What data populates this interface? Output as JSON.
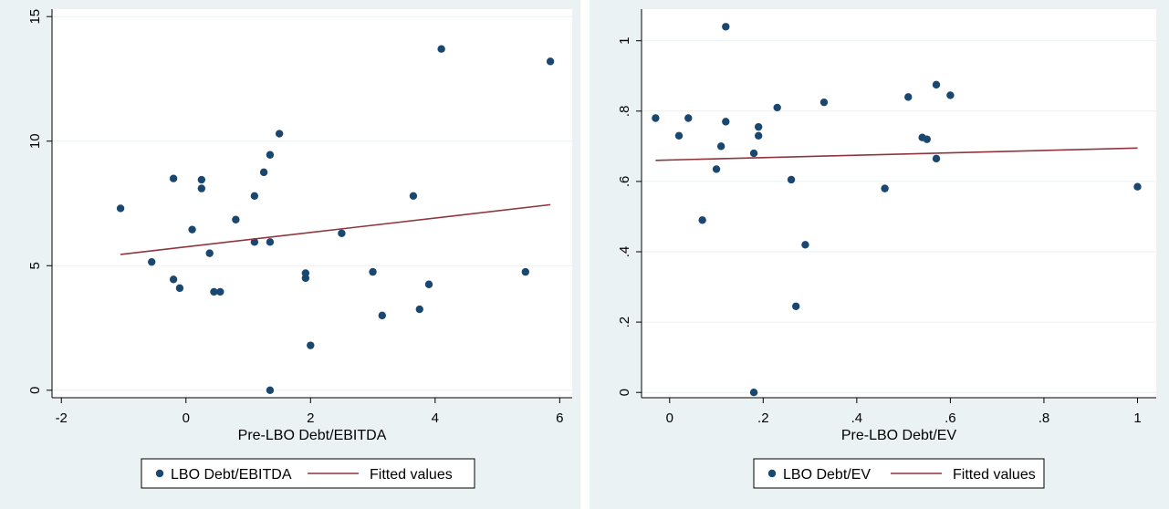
{
  "chart_data": [
    {
      "type": "scatter",
      "xlabel": "Pre-LBO Debt/EBITDA",
      "ylabel": "",
      "xlim": [
        -2.15,
        6.2
      ],
      "ylim": [
        -0.3,
        15.3
      ],
      "xticks": [
        -2,
        0,
        2,
        4,
        6
      ],
      "xtick_labels": [
        "-2",
        "0",
        "2",
        "4",
        "6"
      ],
      "yticks": [
        0,
        5,
        10,
        15
      ],
      "ytick_labels": [
        "0",
        "5",
        "10",
        "15"
      ],
      "grid": true,
      "legend_position": "bottom",
      "series": [
        {
          "name": "LBO Debt/EBITDA",
          "kind": "scatter",
          "color": "#1a476f",
          "points": [
            [
              -1.05,
              7.3
            ],
            [
              -0.55,
              5.15
            ],
            [
              -0.2,
              8.5
            ],
            [
              -0.2,
              4.45
            ],
            [
              -0.1,
              4.1
            ],
            [
              0.1,
              6.45
            ],
            [
              0.25,
              8.45
            ],
            [
              0.25,
              8.1
            ],
            [
              0.38,
              5.5
            ],
            [
              0.45,
              3.95
            ],
            [
              0.55,
              3.95
            ],
            [
              0.8,
              6.85
            ],
            [
              1.1,
              7.8
            ],
            [
              1.1,
              5.95
            ],
            [
              1.25,
              8.75
            ],
            [
              1.35,
              9.45
            ],
            [
              1.35,
              5.95
            ],
            [
              1.5,
              10.3
            ],
            [
              1.35,
              0.0
            ],
            [
              1.92,
              4.7
            ],
            [
              1.92,
              4.5
            ],
            [
              2.0,
              1.8
            ],
            [
              2.5,
              6.3
            ],
            [
              3.0,
              4.75
            ],
            [
              3.15,
              3.0
            ],
            [
              3.65,
              7.8
            ],
            [
              3.75,
              3.25
            ],
            [
              3.9,
              4.25
            ],
            [
              4.1,
              13.7
            ],
            [
              5.45,
              4.75
            ],
            [
              5.85,
              13.2
            ]
          ]
        },
        {
          "name": "Fitted values",
          "kind": "line",
          "color": "#90353b",
          "points": [
            [
              -1.05,
              5.45
            ],
            [
              5.85,
              7.45
            ]
          ]
        }
      ]
    },
    {
      "type": "scatter",
      "xlabel": "Pre-LBO Debt/EV",
      "ylabel": "",
      "xlim": [
        -0.06,
        1.04
      ],
      "ylim": [
        -0.015,
        1.09
      ],
      "xticks": [
        0,
        0.2,
        0.4,
        0.6,
        0.8,
        1
      ],
      "xtick_labels": [
        "0",
        ".2",
        ".4",
        ".6",
        ".8",
        "1"
      ],
      "yticks": [
        0,
        0.2,
        0.4,
        0.6,
        0.8,
        1
      ],
      "ytick_labels": [
        "0",
        ".2",
        ".4",
        ".6",
        ".8",
        "1"
      ],
      "grid": true,
      "legend_position": "bottom",
      "series": [
        {
          "name": "LBO Debt/EV",
          "kind": "scatter",
          "color": "#1a476f",
          "points": [
            [
              -0.03,
              0.78
            ],
            [
              0.02,
              0.73
            ],
            [
              0.04,
              0.78
            ],
            [
              0.07,
              0.49
            ],
            [
              0.1,
              0.635
            ],
            [
              0.11,
              0.7
            ],
            [
              0.12,
              1.04
            ],
            [
              0.12,
              0.77
            ],
            [
              0.18,
              0.68
            ],
            [
              0.18,
              0.0
            ],
            [
              0.19,
              0.755
            ],
            [
              0.19,
              0.73
            ],
            [
              0.23,
              0.81
            ],
            [
              0.26,
              0.605
            ],
            [
              0.27,
              0.245
            ],
            [
              0.29,
              0.42
            ],
            [
              0.33,
              0.825
            ],
            [
              0.46,
              0.58
            ],
            [
              0.51,
              0.84
            ],
            [
              0.54,
              0.725
            ],
            [
              0.55,
              0.72
            ],
            [
              0.57,
              0.875
            ],
            [
              0.57,
              0.665
            ],
            [
              0.6,
              0.845
            ],
            [
              1.0,
              0.585
            ]
          ]
        },
        {
          "name": "Fitted values",
          "kind": "line",
          "color": "#90353b",
          "points": [
            [
              -0.03,
              0.66
            ],
            [
              1.0,
              0.695
            ]
          ]
        }
      ]
    }
  ]
}
